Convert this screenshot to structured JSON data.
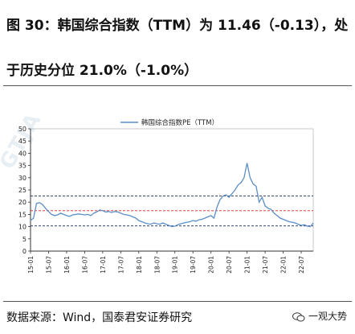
{
  "header": {
    "line1": "图 30：韩国综合指数（TTM）为 11.46（-0.13），处",
    "line2": "于历史分位 21.0%（-1.0%）"
  },
  "footer": {
    "source": "数据来源：Wind，国泰君安证券研究",
    "watermark": "一观大势"
  },
  "colors": {
    "series": "#5b8ec8",
    "red_line": "#e02020",
    "bound_lines": "#1a2a5a",
    "axis": "#333333"
  },
  "chart_data": {
    "type": "line",
    "title": "",
    "legend": [
      "韩国综合指数PE（TTM）"
    ],
    "legend_position": "top-center",
    "ylim": [
      0,
      50
    ],
    "yticks": [
      0,
      5,
      10,
      15,
      20,
      25,
      30,
      35,
      40,
      45,
      50
    ],
    "xticks": [
      "15-01",
      "15-07",
      "16-01",
      "16-07",
      "17-01",
      "17-07",
      "18-01",
      "18-07",
      "19-01",
      "19-07",
      "20-01",
      "20-07",
      "21-01",
      "21-07",
      "22-01",
      "22-07"
    ],
    "grid": false,
    "reference_lines": [
      {
        "name": "upper",
        "value": 22.5,
        "style": "dashed",
        "color": "#1a2a5a"
      },
      {
        "name": "mean",
        "value": 16.5,
        "style": "dashed",
        "color": "#e02020"
      },
      {
        "name": "lower",
        "value": 10.3,
        "style": "dashed",
        "color": "#1a2a5a"
      }
    ],
    "series": [
      {
        "x": [
          "15-01",
          "15-02",
          "15-03",
          "15-04",
          "15-05",
          "15-06",
          "15-07",
          "15-08",
          "15-09",
          "15-10",
          "15-11",
          "15-12",
          "16-01",
          "16-02",
          "16-03",
          "16-04",
          "16-05",
          "16-06",
          "16-07",
          "16-08",
          "16-09",
          "16-10",
          "16-11",
          "16-12",
          "17-01",
          "17-02",
          "17-03",
          "17-04",
          "17-05",
          "17-06",
          "17-07",
          "17-08",
          "17-09",
          "17-10",
          "17-11",
          "17-12",
          "18-01",
          "18-02",
          "18-03",
          "18-04",
          "18-05",
          "18-06",
          "18-07",
          "18-08",
          "18-09",
          "18-10",
          "18-11",
          "18-12",
          "19-01",
          "19-02",
          "19-03",
          "19-04",
          "19-05",
          "19-06",
          "19-07",
          "19-08",
          "19-09",
          "19-10",
          "19-11",
          "19-12",
          "20-01",
          "20-02",
          "20-03",
          "20-04",
          "20-05",
          "20-06",
          "20-07",
          "20-08",
          "20-09",
          "20-10",
          "20-11",
          "20-12",
          "21-01",
          "21-02",
          "21-03",
          "21-04",
          "21-05",
          "21-06",
          "21-07",
          "21-08",
          "21-09",
          "21-10",
          "21-11",
          "21-12",
          "22-01",
          "22-02",
          "22-03",
          "22-04",
          "22-05",
          "22-06",
          "22-07",
          "22-08",
          "22-09",
          "22-10",
          "22-11"
        ],
        "values": [
          12.5,
          13.5,
          19.5,
          19.8,
          19.0,
          17.5,
          16.2,
          15.0,
          14.5,
          14.8,
          15.5,
          15.0,
          14.5,
          14.2,
          14.8,
          15.0,
          15.2,
          15.0,
          14.8,
          15.0,
          14.5,
          15.5,
          16.0,
          16.8,
          16.5,
          16.0,
          16.2,
          15.8,
          16.2,
          16.0,
          15.5,
          15.0,
          14.8,
          14.5,
          14.0,
          13.5,
          12.5,
          12.0,
          11.5,
          11.2,
          11.0,
          11.5,
          11.2,
          11.0,
          11.5,
          11.0,
          10.5,
          10.0,
          10.2,
          10.8,
          11.2,
          11.5,
          11.8,
          12.0,
          12.5,
          12.2,
          12.8,
          13.0,
          13.5,
          14.0,
          14.5,
          13.5,
          18.0,
          21.0,
          22.5,
          23.0,
          22.0,
          23.5,
          25.0,
          27.0,
          28.0,
          30.0,
          36.0,
          30.0,
          27.5,
          26.5,
          20.0,
          22.0,
          18.5,
          17.5,
          17.0,
          15.5,
          14.5,
          13.5,
          13.0,
          12.5,
          12.0,
          11.8,
          11.5,
          11.0,
          10.5,
          10.8,
          10.2,
          10.0,
          11.5
        ]
      }
    ]
  }
}
